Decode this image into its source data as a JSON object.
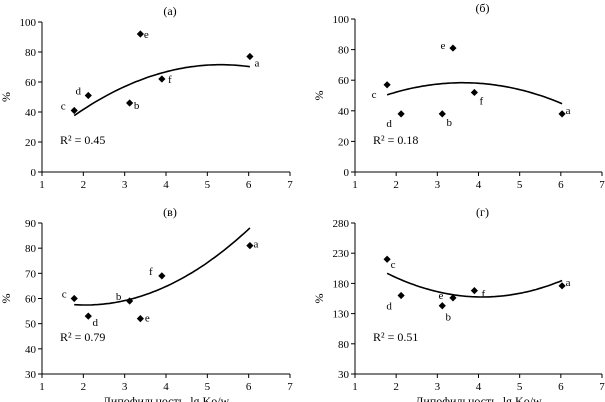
{
  "chart_data": [
    {
      "type": "scatter",
      "panel_label": "(а)",
      "xlabel": "",
      "ylabel": "%",
      "xlim": [
        1,
        7
      ],
      "ylim": [
        0,
        100
      ],
      "xticks": [
        1,
        2,
        3,
        4,
        5,
        6,
        7
      ],
      "yticks": [
        0,
        20,
        40,
        60,
        80,
        100
      ],
      "r2": "R² = 0.45",
      "points": [
        {
          "label": "a",
          "x": 6.03,
          "y": 77
        },
        {
          "label": "b",
          "x": 3.12,
          "y": 46
        },
        {
          "label": "c",
          "x": 1.78,
          "y": 41
        },
        {
          "label": "d",
          "x": 2.12,
          "y": 51
        },
        {
          "label": "e",
          "x": 3.38,
          "y": 92
        },
        {
          "label": "f",
          "x": 3.9,
          "y": 62
        }
      ],
      "trend": {
        "type": "poly2",
        "x_range": [
          1.78,
          6.03
        ],
        "coef": [
          -5.0,
          28.75,
          -2.7
        ]
      }
    },
    {
      "type": "scatter",
      "panel_label": "(б)",
      "xlabel": "",
      "ylabel": "%",
      "xlim": [
        1,
        7
      ],
      "ylim": [
        0,
        100
      ],
      "xticks": [
        1,
        2,
        3,
        4,
        5,
        6,
        7
      ],
      "yticks": [
        0,
        20,
        40,
        60,
        80,
        100
      ],
      "r2": "R² = 0.18",
      "points": [
        {
          "label": "a",
          "x": 6.03,
          "y": 38
        },
        {
          "label": "b",
          "x": 3.12,
          "y": 38
        },
        {
          "label": "c",
          "x": 1.78,
          "y": 57
        },
        {
          "label": "d",
          "x": 2.12,
          "y": 38
        },
        {
          "label": "e",
          "x": 3.38,
          "y": 81
        },
        {
          "label": "f",
          "x": 3.9,
          "y": 52
        }
      ],
      "trend": {
        "type": "poly2",
        "x_range": [
          1.78,
          6.03
        ],
        "coef": [
          27.6,
          17.0,
          -2.35
        ]
      }
    },
    {
      "type": "scatter",
      "panel_label": "(в)",
      "xlabel": "Липофильность, lg Ko/w",
      "ylabel": "%",
      "xlim": [
        1,
        7
      ],
      "ylim": [
        30,
        90
      ],
      "xticks": [
        1,
        2,
        3,
        4,
        5,
        6,
        7
      ],
      "yticks": [
        30,
        40,
        50,
        60,
        70,
        80,
        90
      ],
      "r2": "R² = 0.79",
      "points": [
        {
          "label": "a",
          "x": 6.03,
          "y": 81
        },
        {
          "label": "b",
          "x": 3.12,
          "y": 59
        },
        {
          "label": "c",
          "x": 1.78,
          "y": 60
        },
        {
          "label": "d",
          "x": 2.12,
          "y": 53
        },
        {
          "label": "e",
          "x": 3.38,
          "y": 52
        },
        {
          "label": "f",
          "x": 3.9,
          "y": 69
        }
      ],
      "trend": {
        "type": "poly2",
        "x_range": [
          1.78,
          6.03
        ],
        "coef": [
          65.5,
          -7.9,
          1.93
        ]
      }
    },
    {
      "type": "scatter",
      "panel_label": "(г)",
      "xlabel": "Липофильность, lg Ko/w",
      "ylabel": "%",
      "xlim": [
        1,
        7
      ],
      "ylim": [
        30,
        280
      ],
      "xticks": [
        1,
        2,
        3,
        4,
        5,
        6,
        7
      ],
      "yticks": [
        30,
        80,
        130,
        180,
        230,
        280
      ],
      "r2": "R² = 0.51",
      "points": [
        {
          "label": "a",
          "x": 6.03,
          "y": 176
        },
        {
          "label": "b",
          "x": 3.12,
          "y": 143
        },
        {
          "label": "c",
          "x": 1.78,
          "y": 220
        },
        {
          "label": "d",
          "x": 2.12,
          "y": 160
        },
        {
          "label": "e",
          "x": 3.38,
          "y": 156
        },
        {
          "label": "f",
          "x": 3.9,
          "y": 168
        }
      ],
      "trend": {
        "type": "poly2",
        "x_range": [
          1.78,
          6.03
        ],
        "coef": [
          280,
          -59.8,
          7.3
        ]
      }
    }
  ]
}
